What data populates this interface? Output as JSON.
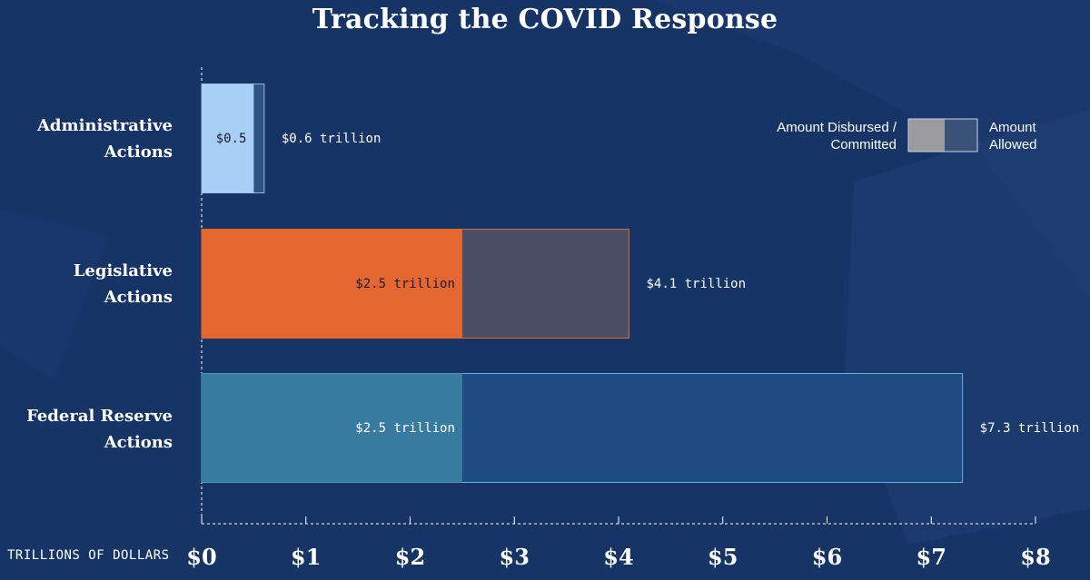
{
  "chart_data": {
    "type": "bar",
    "orientation": "horizontal",
    "stacked": false,
    "title": "Tracking the COVID Response",
    "xlabel": "TRILLIONS OF DOLLARS",
    "xlim": [
      0,
      8
    ],
    "x_ticks": [
      "$0",
      "$1",
      "$2",
      "$3",
      "$4",
      "$5",
      "$6",
      "$7",
      "$8"
    ],
    "categories": [
      {
        "key": "administrative",
        "line1": "Administrative",
        "line2": "Actions"
      },
      {
        "key": "legislative",
        "line1": "Legislative",
        "line2": "Actions"
      },
      {
        "key": "federal-reserve",
        "line1": "Federal Reserve",
        "line2": "Actions"
      }
    ],
    "series": [
      {
        "name": "Amount Disbursed / Committed",
        "values": [
          0.5,
          2.5,
          2.5
        ],
        "labels": [
          "$0.5",
          "$2.5 trillion",
          "$2.5 trillion"
        ]
      },
      {
        "name": "Amount Allowed",
        "values": [
          0.6,
          4.1,
          7.3
        ],
        "labels": [
          "$0.6 trillion",
          "$4.1 trillion",
          "$7.3 trillion"
        ]
      }
    ],
    "colors": {
      "disbursed": [
        "#a7cff8",
        "#e3672f",
        "#387b9f"
      ],
      "allowed": [
        "#2e5387",
        "#4b4f66",
        "#1f4b83"
      ],
      "allowed_border": [
        "#9fb4d3",
        "#e3672f",
        "#5eb3e4"
      ],
      "label_dark": "#1a1a2e",
      "label_light": "#ffffff"
    },
    "legend": {
      "disbursed_line1": "Amount Disbursed /",
      "disbursed_line2": "Committed",
      "allowed_line1": "Amount",
      "allowed_line2": "Allowed",
      "swatch_disbursed": "#9a9a9f",
      "swatch_allowed": "#3a5278",
      "position": "top-right"
    }
  }
}
